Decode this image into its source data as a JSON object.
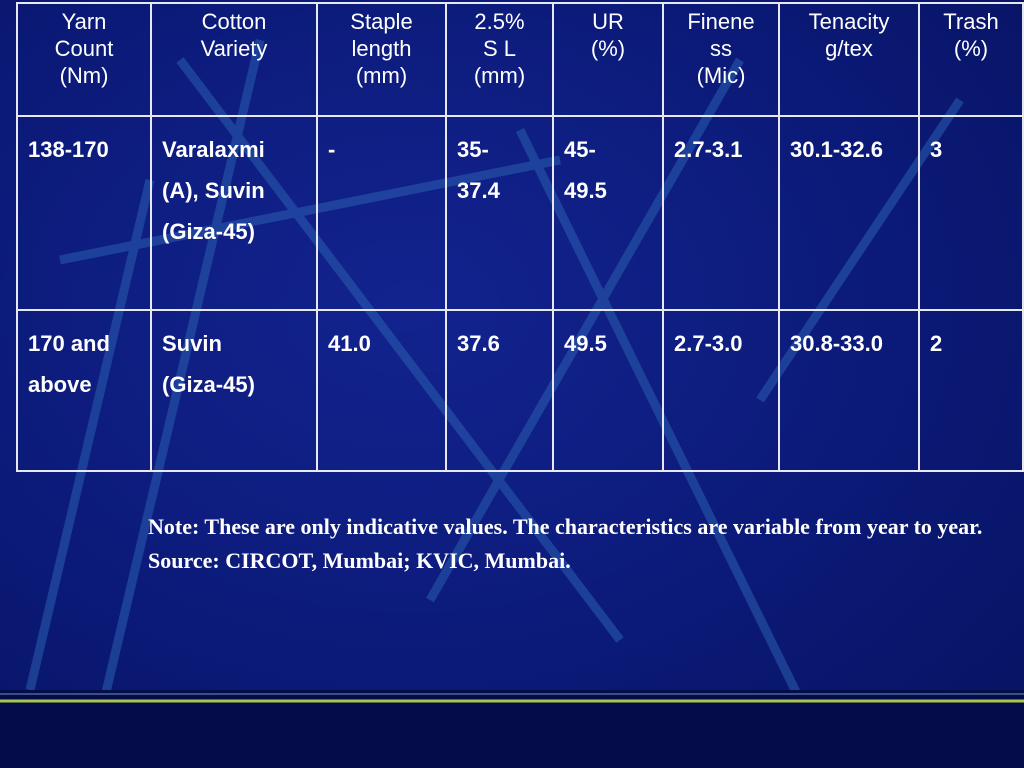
{
  "table": {
    "header": [
      "Yarn\nCount\n(Nm)",
      "Cotton\nVariety",
      "Staple\nlength\n(mm)",
      "2.5%\nS L\n(mm)",
      "UR\n(%)",
      "Finene\nss\n(Mic)",
      "Tenacity\ng/tex",
      "Trash\n(%)"
    ],
    "rows": [
      [
        "138-170",
        "Varalaxmi\n(A), Suvin\n(Giza-45)",
        "-",
        "35-\n37.4",
        "45-\n49.5",
        "2.7-3.1",
        "30.1-32.6",
        "3"
      ],
      [
        "170 and\nabove",
        "Suvin\n(Giza-45)",
        "41.0",
        "37.6",
        "49.5",
        "2.7-3.0",
        "30.8-33.0",
        "2"
      ]
    ]
  },
  "note": "Note: These are only indicative values. The characteristics are variable from year to year.",
  "source": "Source: CIRCOT, Mumbai; KVIC, Mumbai."
}
